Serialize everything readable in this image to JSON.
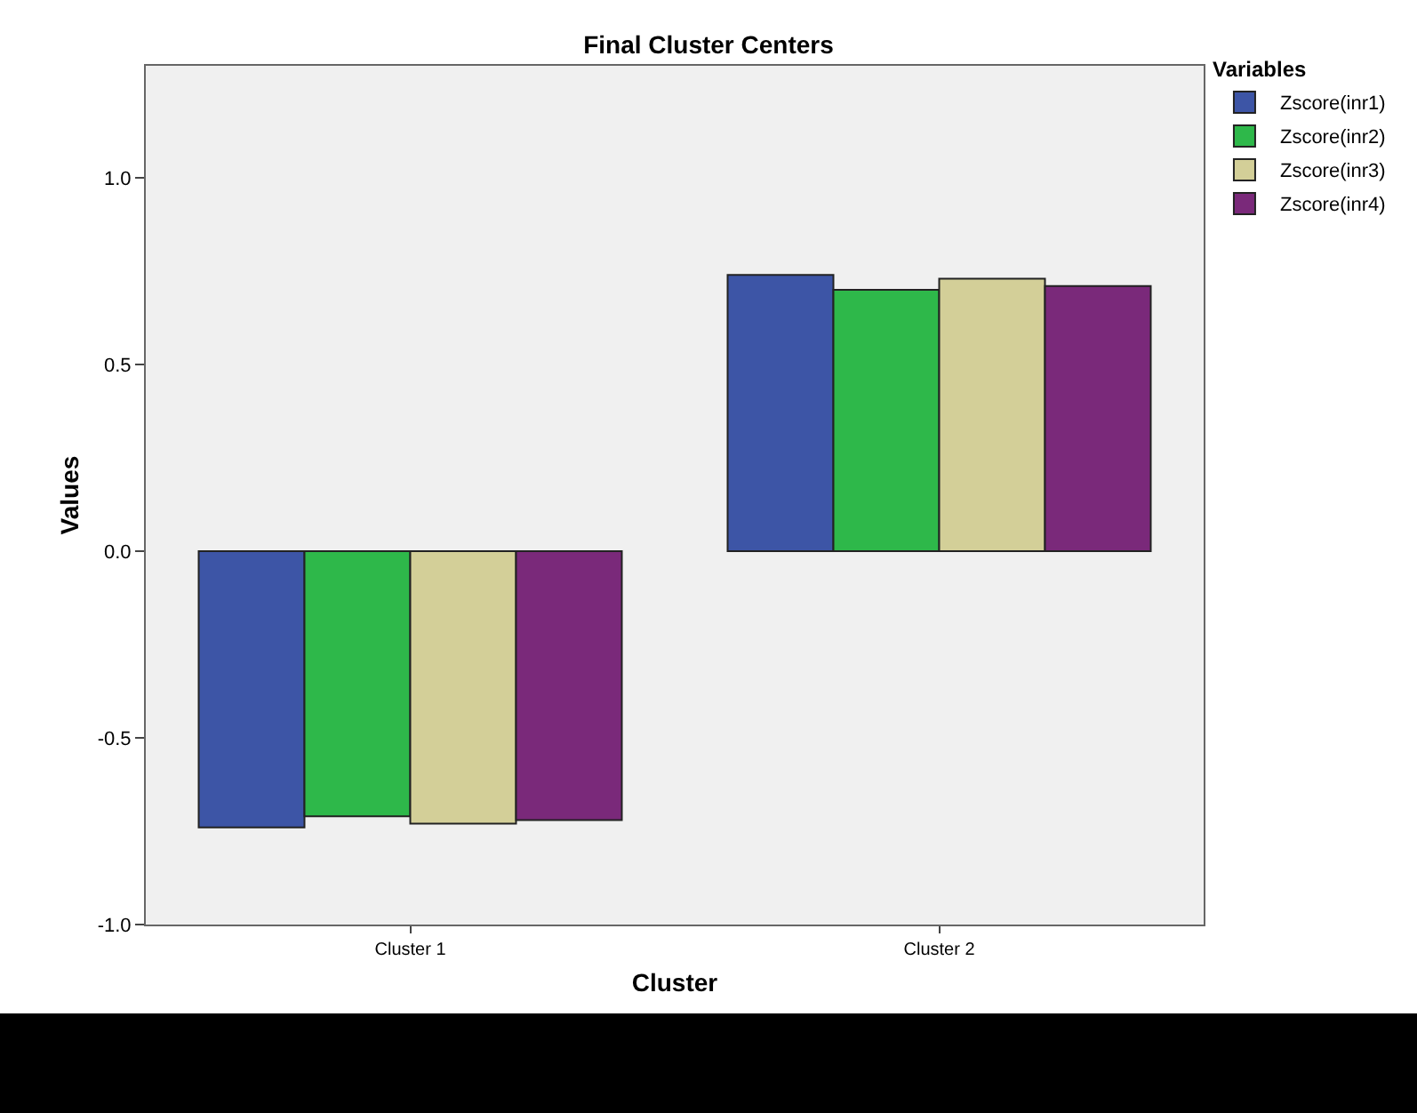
{
  "chart_data": {
    "type": "bar",
    "title": "Final Cluster Centers",
    "xlabel": "Cluster",
    "ylabel": "Values",
    "legend_title": "Variables",
    "categories": [
      "Cluster 1",
      "Cluster 2"
    ],
    "series": [
      {
        "name": "Zscore(inr1)",
        "color": "#3d55a6",
        "values": [
          -0.74,
          0.74
        ]
      },
      {
        "name": "Zscore(inr2)",
        "color": "#2eb84a",
        "values": [
          -0.71,
          0.7
        ]
      },
      {
        "name": "Zscore(inr3)",
        "color": "#d3cf98",
        "values": [
          -0.73,
          0.73
        ]
      },
      {
        "name": "Zscore(inr4)",
        "color": "#7a297a",
        "values": [
          -0.72,
          0.71
        ]
      }
    ],
    "ylim": [
      -1.0,
      1.3
    ],
    "yticks": [
      {
        "value": -1,
        "label": "-1.0"
      },
      {
        "value": -0.5,
        "label": "-0.5"
      },
      {
        "value": 0,
        "label": "0.0"
      },
      {
        "value": 0.5,
        "label": "0.5"
      },
      {
        "value": 1,
        "label": "1.0"
      }
    ],
    "grid": false,
    "legend": "top right"
  }
}
